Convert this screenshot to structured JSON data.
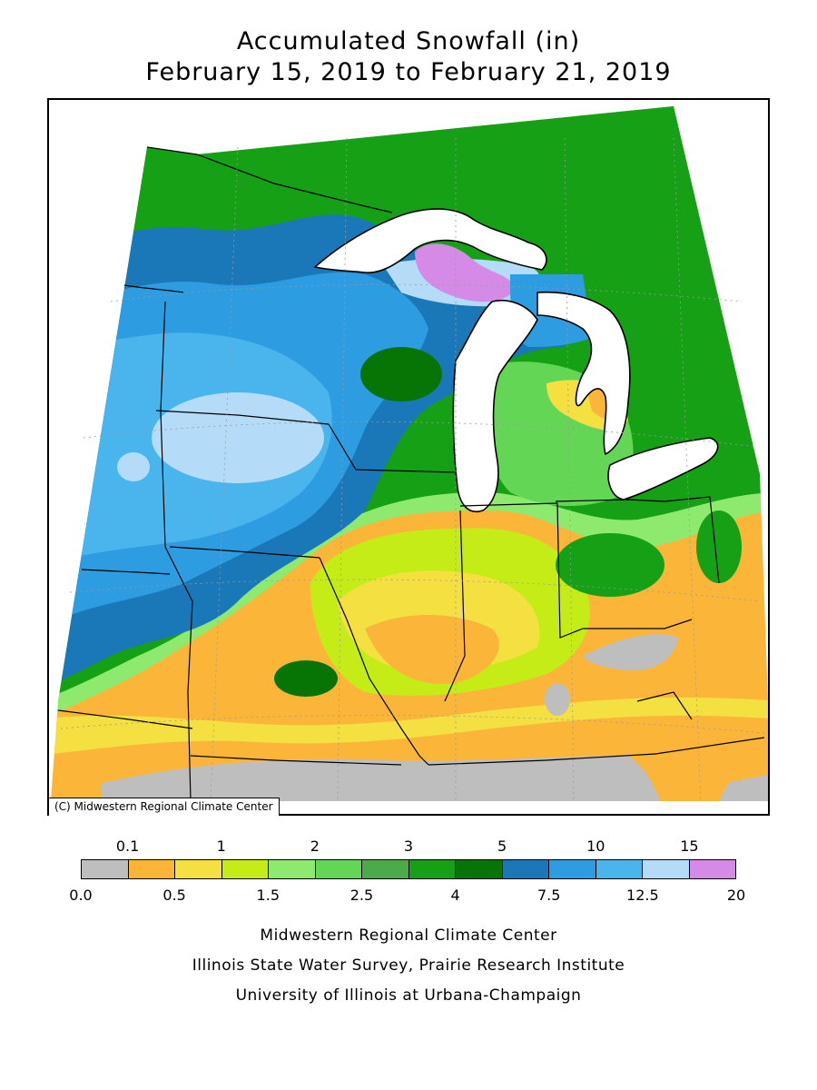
{
  "title": {
    "line1": "Accumulated Snowfall (in)",
    "line2": "February 15, 2019 to February 21, 2019"
  },
  "map": {
    "credit": "(C) Midwestern Regional Climate Center"
  },
  "legend": {
    "colors": [
      "#bebebe",
      "#fbb63a",
      "#f4e040",
      "#c6ec18",
      "#8eea6e",
      "#64d656",
      "#4caa48",
      "#16a016",
      "#067506",
      "#1a78b8",
      "#2e9ce0",
      "#4ab4ec",
      "#b4dcf8",
      "#d48ae6"
    ],
    "upper_labels": [
      "0.1",
      "1",
      "2",
      "3",
      "5",
      "10",
      "15"
    ],
    "lower_labels": [
      "0.0",
      "0.5",
      "1.5",
      "2.5",
      "4",
      "7.5",
      "12.5",
      "20"
    ],
    "unit": "in"
  },
  "footer": {
    "line1": "Midwestern Regional Climate Center",
    "line2": "Illinois State Water Survey, Prairie Research Institute",
    "line3": "University of Illinois at Urbana-Champaign"
  }
}
